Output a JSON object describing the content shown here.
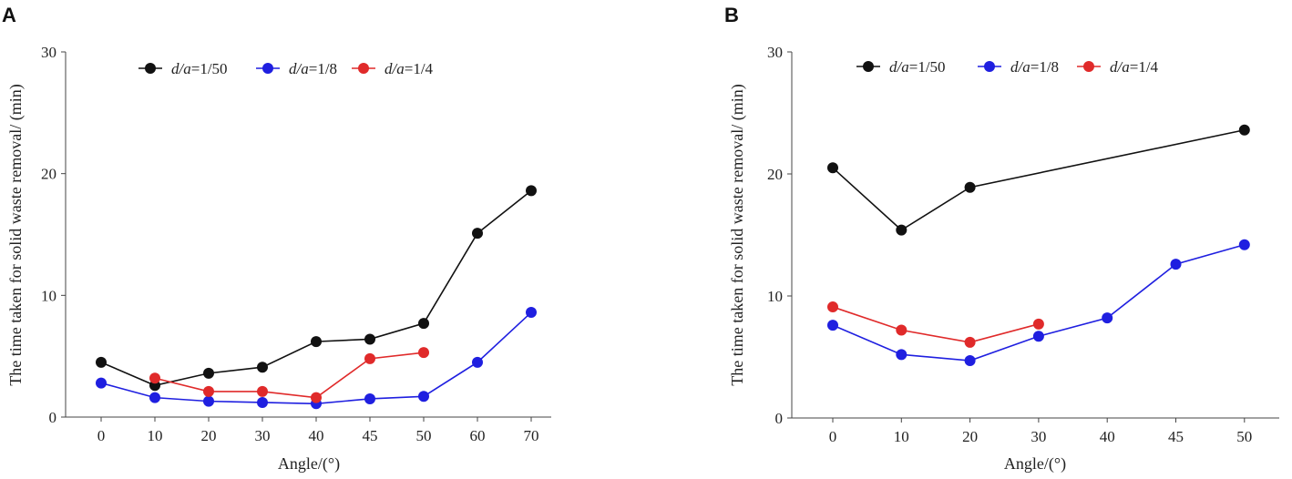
{
  "chart_data": [
    {
      "panel": "A",
      "type": "line",
      "title": "",
      "xlabel": "Angle/(°)",
      "ylabel": "The time taken for solid waste removal/ (min)",
      "categories": [
        "0",
        "10",
        "20",
        "30",
        "40",
        "45",
        "50",
        "60",
        "70"
      ],
      "ylim": [
        0,
        30
      ],
      "yticks": [
        0,
        10,
        20,
        30
      ],
      "grid": false,
      "legend_position": "top",
      "series": [
        {
          "name_italic": "d/a",
          "name_rest": "=1/50",
          "color": "#111111",
          "values": [
            4.5,
            2.6,
            3.6,
            4.1,
            6.2,
            6.4,
            7.7,
            15.1,
            18.6
          ]
        },
        {
          "name_italic": "d/a",
          "name_rest": "=1/8",
          "color": "#1f1fe0",
          "values": [
            2.8,
            1.6,
            1.3,
            1.2,
            1.1,
            1.5,
            1.7,
            4.5,
            8.6
          ]
        },
        {
          "name_italic": "d/a",
          "name_rest": "=1/4",
          "color": "#e02a2a",
          "values": [
            null,
            3.2,
            2.1,
            2.1,
            1.6,
            4.8,
            5.3,
            null,
            null
          ]
        }
      ]
    },
    {
      "panel": "B",
      "type": "line",
      "title": "",
      "xlabel": "Angle/(°)",
      "ylabel": "The time taken for solid waste removal/ (min)",
      "categories": [
        "0",
        "10",
        "20",
        "30",
        "40",
        "45",
        "50"
      ],
      "ylim": [
        0,
        30
      ],
      "yticks": [
        0,
        10,
        20,
        30
      ],
      "grid": false,
      "legend_position": "top",
      "series": [
        {
          "name_italic": "d/a",
          "name_rest": "=1/50",
          "color": "#111111",
          "values": [
            20.5,
            15.4,
            18.9,
            null,
            null,
            null,
            23.6
          ]
        },
        {
          "name_italic": "d/a",
          "name_rest": "=1/8",
          "color": "#1f1fe0",
          "values": [
            7.6,
            5.2,
            4.7,
            6.7,
            8.2,
            12.6,
            14.2
          ]
        },
        {
          "name_italic": "d/a",
          "name_rest": "=1/4",
          "color": "#e02a2a",
          "values": [
            9.1,
            7.2,
            6.2,
            7.7,
            null,
            null,
            null
          ]
        }
      ]
    }
  ]
}
